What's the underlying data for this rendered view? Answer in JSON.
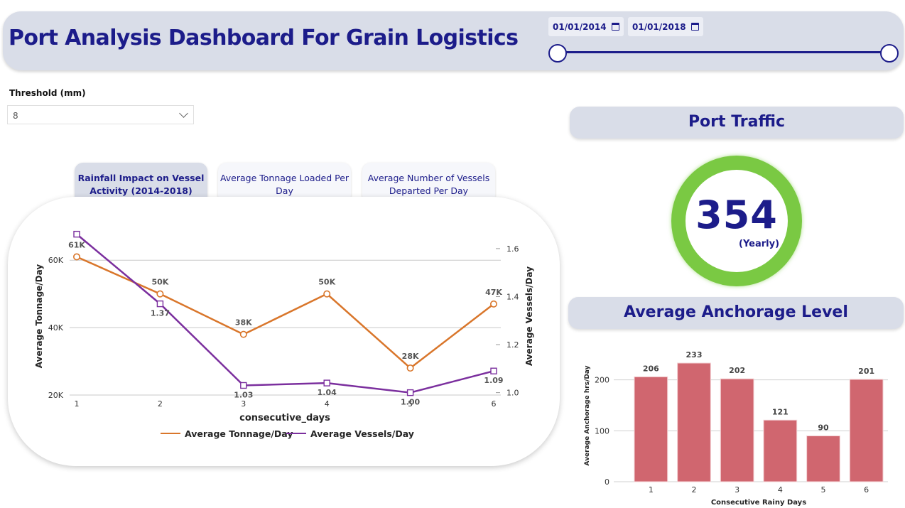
{
  "header": {
    "title": "Port Analysis Dashboard For Grain Logistics",
    "start_date": "01/01/2014",
    "end_date": "01/01/2018"
  },
  "filter": {
    "label": "Threshold (mm)",
    "value": "8"
  },
  "tabs": [
    {
      "label_line1": "Rainfall Impact on Vessel",
      "label_line2": "Activity (2014-2018)",
      "active": true
    },
    {
      "label_line1": "Average Tonnage Loaded Per",
      "label_line2": "Day",
      "active": false
    },
    {
      "label_line1": "Average Number of Vessels",
      "label_line2": "Departed Per Day",
      "active": false
    }
  ],
  "port_traffic": {
    "title": "Port Traffic",
    "value": "354",
    "subtitle": "(Yearly)"
  },
  "anchorage": {
    "title": "Average Anchorage Level"
  },
  "colors": {
    "accent": "#1c1c8a",
    "panel": "#d9dde8",
    "tonnage": "#d9762b",
    "vessels": "#7b2f9e",
    "bar": "#d0666f",
    "gauge": "#7ac943"
  },
  "chart_data": [
    {
      "type": "line",
      "xlabel": "consecutive_days",
      "ylabel": "Average Tonnage/Day",
      "y2label": "Average Vessels/Day",
      "x": [
        1,
        2,
        3,
        4,
        5,
        6
      ],
      "y_ticks": [
        "20K",
        "40K",
        "60K"
      ],
      "y2_ticks": [
        "1.0",
        "1.2",
        "1.4",
        "1.6"
      ],
      "ylim": [
        20000,
        67000
      ],
      "y2lim": [
        0.99,
        1.65
      ],
      "legend_position": "bottom",
      "series": [
        {
          "name": "Average Tonnage/Day",
          "axis": "left",
          "values": [
            61000,
            50000,
            38000,
            50000,
            28000,
            47000
          ],
          "labels": [
            "61K",
            "50K",
            "38K",
            "50K",
            "28K",
            "47K"
          ]
        },
        {
          "name": "Average Vessels/Day",
          "axis": "right",
          "values": [
            1.66,
            1.37,
            1.03,
            1.04,
            1.0,
            1.09
          ],
          "labels": [
            "",
            "1.37",
            "1.03",
            "1.04",
            "1.00",
            "1.09"
          ]
        }
      ]
    },
    {
      "type": "bar",
      "xlabel": "Consecutive Rainy Days",
      "ylabel": "Average Anchorage hrs/Day",
      "categories": [
        "1",
        "2",
        "3",
        "4",
        "5",
        "6"
      ],
      "values": [
        206,
        233,
        202,
        121,
        90,
        201
      ],
      "y_ticks": [
        "0",
        "100",
        "200"
      ],
      "ylim": [
        0,
        240
      ]
    }
  ]
}
